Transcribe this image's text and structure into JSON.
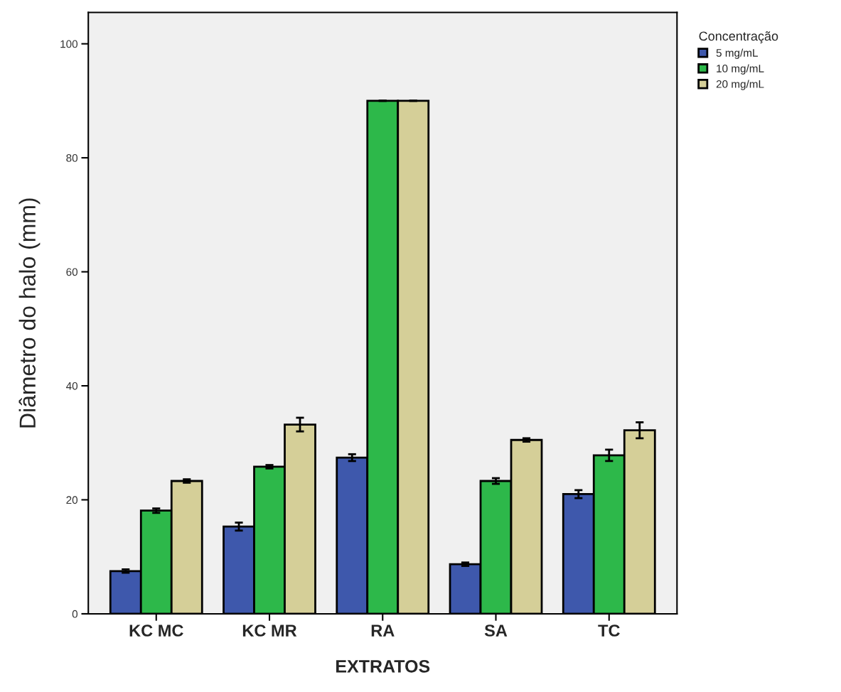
{
  "chart_data": {
    "type": "bar",
    "xlabel": "EXTRATOS",
    "ylabel": "Diâmetro do halo (mm)",
    "legend_title": "Concentração",
    "categories": [
      "KC MC",
      "KC MR",
      "RA",
      "SA",
      "TC"
    ],
    "series": [
      {
        "name": "5 mg/mL",
        "color": "#3e58ac",
        "values": [
          7.5,
          15.3,
          27.4,
          8.7,
          21.0
        ],
        "errors": [
          0.3,
          0.7,
          0.6,
          0.3,
          0.7
        ]
      },
      {
        "name": "10 mg/mL",
        "color": "#2db84a",
        "values": [
          18.1,
          25.8,
          90.0,
          23.3,
          27.8
        ],
        "errors": [
          0.4,
          0.3,
          0,
          0.5,
          1.0
        ]
      },
      {
        "name": "20 mg/mL",
        "color": "#d5cf98",
        "values": [
          23.3,
          33.2,
          90.0,
          30.5,
          32.2
        ],
        "errors": [
          0.3,
          1.2,
          0,
          0.3,
          1.4
        ]
      }
    ],
    "ylim": [
      0,
      105.5
    ],
    "yticks": [
      0,
      20,
      40,
      60,
      80,
      100
    ],
    "grid": false,
    "legend": "top right"
  }
}
